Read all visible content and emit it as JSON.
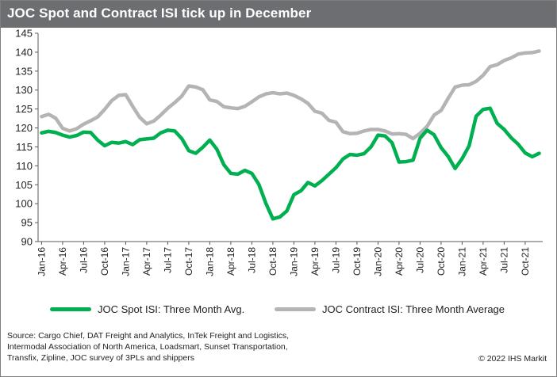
{
  "header": {
    "title": "JOC Spot and Contract ISI tick up in December"
  },
  "chart_data": {
    "type": "line",
    "title": "JOC Spot and Contract ISI tick up in December",
    "xlabel": "",
    "ylabel": "",
    "ylim": [
      90,
      145
    ],
    "y_ticks": [
      90,
      95,
      100,
      105,
      110,
      115,
      120,
      125,
      130,
      135,
      140,
      145
    ],
    "x_tick_labels": [
      "Jan-16",
      "Apr-16",
      "Jul-16",
      "Oct-16",
      "Jan-17",
      "Apr-17",
      "Jul-17",
      "Oct-17",
      "Jan-18",
      "Apr-18",
      "Jul-18",
      "Oct-18",
      "Jan-19",
      "Apr-19",
      "Jul-19",
      "Oct-19",
      "Jan-20",
      "Apr-20",
      "Jul-20",
      "Oct-20",
      "Jan-21",
      "Apr-21",
      "Jul-21",
      "Oct-21"
    ],
    "x": [
      "Jan-16",
      "Feb-16",
      "Mar-16",
      "Apr-16",
      "May-16",
      "Jun-16",
      "Jul-16",
      "Aug-16",
      "Sep-16",
      "Oct-16",
      "Nov-16",
      "Dec-16",
      "Jan-17",
      "Feb-17",
      "Mar-17",
      "Apr-17",
      "May-17",
      "Jun-17",
      "Jul-17",
      "Aug-17",
      "Sep-17",
      "Oct-17",
      "Nov-17",
      "Dec-17",
      "Jan-18",
      "Feb-18",
      "Mar-18",
      "Apr-18",
      "May-18",
      "Jun-18",
      "Jul-18",
      "Aug-18",
      "Sep-18",
      "Oct-18",
      "Nov-18",
      "Dec-18",
      "Jan-19",
      "Feb-19",
      "Mar-19",
      "Apr-19",
      "May-19",
      "Jun-19",
      "Jul-19",
      "Aug-19",
      "Sep-19",
      "Oct-19",
      "Nov-19",
      "Dec-19",
      "Jan-20",
      "Feb-20",
      "Mar-20",
      "Apr-20",
      "May-20",
      "Jun-20",
      "Jul-20",
      "Aug-20",
      "Sep-20",
      "Oct-20",
      "Nov-20",
      "Dec-20",
      "Jan-21",
      "Feb-21",
      "Mar-21",
      "Apr-21",
      "May-21",
      "Jun-21",
      "Jul-21",
      "Aug-21",
      "Sep-21",
      "Oct-21",
      "Nov-21",
      "Dec-21"
    ],
    "series": [
      {
        "name": "JOC Spot ISI: Three Month Avg.",
        "color": "#00b050",
        "values": [
          118.7,
          119.1,
          118.8,
          118.1,
          117.6,
          118.0,
          118.9,
          118.8,
          116.8,
          115.3,
          116.2,
          116.0,
          116.4,
          115.6,
          116.9,
          117.1,
          117.3,
          118.7,
          119.4,
          119.2,
          117.2,
          114.0,
          113.3,
          114.9,
          116.8,
          114.4,
          110.3,
          108.0,
          107.8,
          108.8,
          108.0,
          105.1,
          100.1,
          96.0,
          96.5,
          98.1,
          102.4,
          103.4,
          105.6,
          104.7,
          106.1,
          107.8,
          109.5,
          111.8,
          113.0,
          112.8,
          113.2,
          115.0,
          118.1,
          117.9,
          116.1,
          111.0,
          111.1,
          111.5,
          117.3,
          119.4,
          118.2,
          114.8,
          112.5,
          109.3,
          111.9,
          115.3,
          123.1,
          124.9,
          125.2,
          121.2,
          119.6,
          117.4,
          115.7,
          113.4,
          112.4,
          113.3
        ]
      },
      {
        "name": "JOC Contract ISI: Three Month Average",
        "color": "#b4b4b4",
        "values": [
          123.0,
          123.6,
          122.6,
          119.9,
          119.2,
          119.8,
          121.0,
          121.9,
          122.9,
          124.9,
          127.2,
          128.6,
          128.8,
          125.7,
          122.8,
          121.1,
          121.8,
          123.4,
          125.2,
          126.7,
          128.4,
          131.1,
          130.8,
          130.1,
          127.4,
          127.0,
          125.6,
          125.3,
          125.1,
          125.7,
          126.9,
          128.2,
          129.0,
          129.3,
          129.0,
          129.2,
          128.6,
          127.7,
          126.5,
          124.4,
          123.9,
          122.0,
          121.5,
          119.0,
          118.5,
          118.6,
          119.2,
          119.6,
          119.6,
          119.2,
          118.4,
          118.5,
          118.3,
          117.2,
          118.6,
          120.4,
          123.4,
          124.6,
          127.8,
          130.8,
          131.3,
          131.4,
          132.3,
          133.9,
          136.2,
          136.7,
          137.8,
          138.5,
          139.5,
          139.8,
          139.9,
          140.3
        ]
      }
    ],
    "grid": false,
    "legend_position": "bottom"
  },
  "legend": {
    "spot_label": "JOC Spot ISI: Three Month Avg.",
    "contract_label": "JOC Contract ISI: Three Month Average"
  },
  "footer": {
    "source_lines": [
      "Source: Cargo Chief, DAT Freight and Analytics, InTek Freight and Logistics,",
      "Intermodal Association of North America, Loadsmart, Sunset Transportation,",
      "Transfix, Zipline, JOC survey of 3PLs and shippers"
    ],
    "copyright": "© 2022 IHS Markit"
  }
}
